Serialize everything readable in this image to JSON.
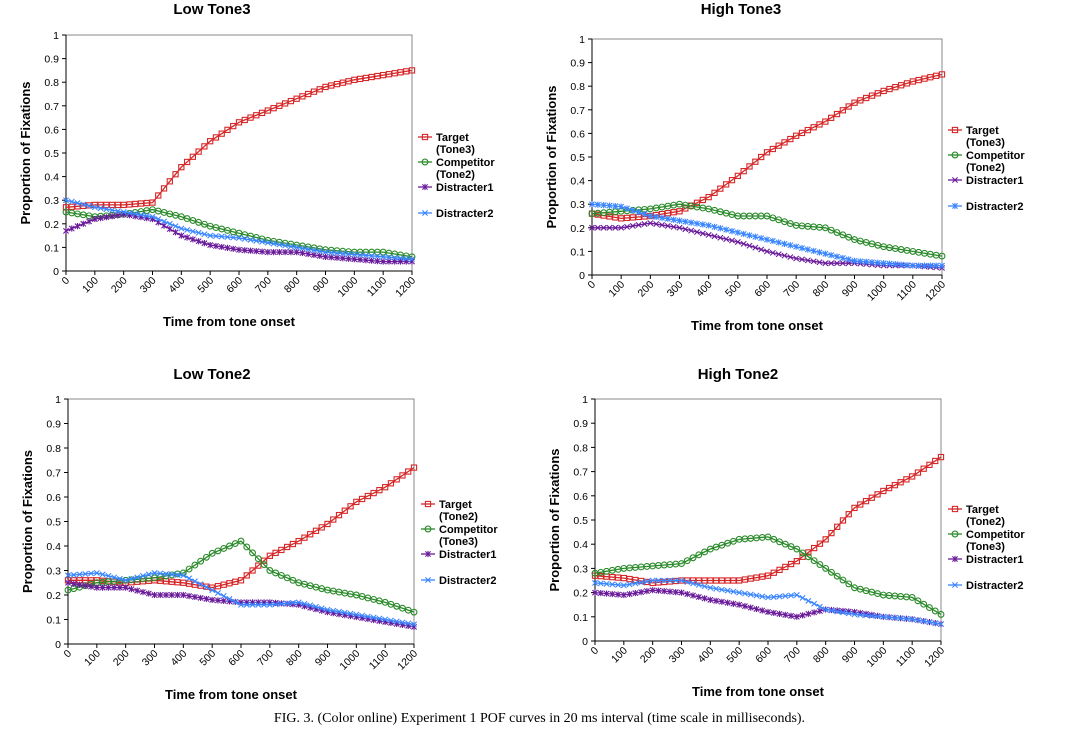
{
  "caption": "FIG. 3.  (Color online) Experiment 1 POF curves in 20 ms interval (time scale in milliseconds).",
  "series_colors": [
    "#d62728",
    "#2a8a2a",
    "#6a1b9a",
    "#3a86ff"
  ],
  "chart_data": [
    {
      "type": "line",
      "title": "Low Tone3",
      "xlabel": "Time from tone onset",
      "ylabel": "Proportion of Fixations",
      "xlim": [
        0,
        1200
      ],
      "ylim": [
        0,
        1
      ],
      "xticks": [
        "0",
        "100",
        "200",
        "300",
        "400",
        "500",
        "600",
        "700",
        "800",
        "900",
        "1000",
        "1100",
        "1200"
      ],
      "yticks": [
        "0",
        "0.1",
        "0.2",
        "0.3",
        "0.4",
        "0.5",
        "0.6",
        "0.7",
        "0.8",
        "0.9",
        "1"
      ],
      "legend_position": "right",
      "legend": [
        {
          "lines": [
            "Target",
            "(Tone3)"
          ],
          "marker": "square"
        },
        {
          "lines": [
            "Competitor",
            "(Tone2)"
          ],
          "marker": "circle"
        },
        {
          "lines": [
            "Distracter1"
          ],
          "marker": "star"
        },
        {
          "lines": [
            "Distracter2"
          ],
          "marker": "x"
        }
      ],
      "x": [
        0,
        100,
        200,
        300,
        400,
        500,
        600,
        700,
        800,
        900,
        1000,
        1100,
        1200
      ],
      "series": [
        {
          "name": "Target (Tone3)",
          "values": [
            0.27,
            0.28,
            0.28,
            0.29,
            0.44,
            0.55,
            0.63,
            0.68,
            0.73,
            0.78,
            0.81,
            0.83,
            0.85
          ]
        },
        {
          "name": "Competitor (Tone2)",
          "values": [
            0.25,
            0.23,
            0.24,
            0.26,
            0.23,
            0.19,
            0.16,
            0.13,
            0.11,
            0.09,
            0.08,
            0.08,
            0.06
          ]
        },
        {
          "name": "Distracter1",
          "values": [
            0.17,
            0.22,
            0.24,
            0.22,
            0.15,
            0.11,
            0.09,
            0.08,
            0.08,
            0.06,
            0.05,
            0.04,
            0.04
          ]
        },
        {
          "name": "Distracter2",
          "values": [
            0.3,
            0.27,
            0.25,
            0.23,
            0.18,
            0.15,
            0.14,
            0.12,
            0.1,
            0.08,
            0.07,
            0.06,
            0.05
          ]
        }
      ]
    },
    {
      "type": "line",
      "title": "High Tone3",
      "xlabel": "Time from tone onset",
      "ylabel": "Proportion of Fixations",
      "xlim": [
        0,
        1200
      ],
      "ylim": [
        0,
        1
      ],
      "xticks": [
        "0",
        "100",
        "200",
        "300",
        "400",
        "500",
        "600",
        "700",
        "800",
        "900",
        "1000",
        "1100",
        "1200"
      ],
      "yticks": [
        "0",
        "0.1",
        "0.2",
        "0.3",
        "0.4",
        "0.5",
        "0.6",
        "0.7",
        "0.8",
        "0.9",
        "1"
      ],
      "legend_position": "right",
      "legend": [
        {
          "lines": [
            "Target",
            "(Tone3)"
          ],
          "marker": "square"
        },
        {
          "lines": [
            "Competitor",
            "(Tone2)"
          ],
          "marker": "circle"
        },
        {
          "lines": [
            "Distracter1"
          ],
          "marker": "x"
        },
        {
          "lines": [
            "Distracter2"
          ],
          "marker": "star"
        }
      ],
      "x": [
        0,
        100,
        200,
        300,
        400,
        500,
        600,
        700,
        800,
        900,
        1000,
        1100,
        1200
      ],
      "series": [
        {
          "name": "Target (Tone3)",
          "values": [
            0.26,
            0.24,
            0.25,
            0.27,
            0.33,
            0.42,
            0.52,
            0.59,
            0.65,
            0.73,
            0.78,
            0.82,
            0.85
          ]
        },
        {
          "name": "Competitor (Tone2)",
          "values": [
            0.26,
            0.27,
            0.28,
            0.3,
            0.28,
            0.25,
            0.25,
            0.21,
            0.2,
            0.15,
            0.12,
            0.1,
            0.08
          ]
        },
        {
          "name": "Distracter1",
          "values": [
            0.2,
            0.2,
            0.22,
            0.2,
            0.17,
            0.14,
            0.1,
            0.07,
            0.05,
            0.05,
            0.04,
            0.04,
            0.03
          ]
        },
        {
          "name": "Distracter2",
          "values": [
            0.3,
            0.29,
            0.25,
            0.23,
            0.21,
            0.18,
            0.15,
            0.12,
            0.09,
            0.06,
            0.05,
            0.04,
            0.04
          ]
        }
      ]
    },
    {
      "type": "line",
      "title": "Low Tone2",
      "xlabel": "Time from tone onset",
      "ylabel": "Proportion of Fixations",
      "xlim": [
        0,
        1200
      ],
      "ylim": [
        0,
        1
      ],
      "xticks": [
        "0",
        "100",
        "200",
        "300",
        "400",
        "500",
        "600",
        "700",
        "800",
        "900",
        "1000",
        "1100",
        "1200"
      ],
      "yticks": [
        "0",
        "0.1",
        "0.2",
        "0.3",
        "0.4",
        "0.5",
        "0.6",
        "0.7",
        "0.8",
        "0.9",
        "1"
      ],
      "legend_position": "right",
      "legend": [
        {
          "lines": [
            "Target",
            "(Tone2)"
          ],
          "marker": "square"
        },
        {
          "lines": [
            "Competitor",
            "(Tone3)"
          ],
          "marker": "circle"
        },
        {
          "lines": [
            "Distracter1"
          ],
          "marker": "star"
        },
        {
          "lines": [
            "Distracter2"
          ],
          "marker": "x"
        }
      ],
      "x": [
        0,
        100,
        200,
        300,
        400,
        500,
        600,
        700,
        800,
        900,
        1000,
        1100,
        1200
      ],
      "series": [
        {
          "name": "Target (Tone2)",
          "values": [
            0.26,
            0.26,
            0.25,
            0.26,
            0.25,
            0.23,
            0.26,
            0.36,
            0.42,
            0.49,
            0.58,
            0.64,
            0.72
          ]
        },
        {
          "name": "Competitor (Tone3)",
          "values": [
            0.22,
            0.25,
            0.26,
            0.27,
            0.29,
            0.37,
            0.42,
            0.3,
            0.25,
            0.22,
            0.2,
            0.17,
            0.13
          ]
        },
        {
          "name": "Distracter1",
          "values": [
            0.25,
            0.23,
            0.23,
            0.2,
            0.2,
            0.18,
            0.17,
            0.17,
            0.16,
            0.13,
            0.11,
            0.09,
            0.07
          ]
        },
        {
          "name": "Distracter2",
          "values": [
            0.28,
            0.29,
            0.26,
            0.29,
            0.28,
            0.22,
            0.16,
            0.16,
            0.17,
            0.14,
            0.12,
            0.1,
            0.08
          ]
        }
      ]
    },
    {
      "type": "line",
      "title": "High Tone2",
      "xlabel": "Time from tone onset",
      "ylabel": "Proportion of Fixations",
      "xlim": [
        0,
        1200
      ],
      "ylim": [
        0,
        1
      ],
      "xticks": [
        "0",
        "100",
        "200",
        "300",
        "400",
        "500",
        "600",
        "700",
        "800",
        "900",
        "1000",
        "1100",
        "1200"
      ],
      "yticks": [
        "0",
        "0.1",
        "0.2",
        "0.3",
        "0.4",
        "0.5",
        "0.6",
        "0.7",
        "0.8",
        "0.9",
        "1"
      ],
      "legend_position": "right",
      "legend": [
        {
          "lines": [
            "Target",
            "(Tone2)"
          ],
          "marker": "square"
        },
        {
          "lines": [
            "Competitor",
            "(Tone3)"
          ],
          "marker": "circle"
        },
        {
          "lines": [
            "Distracter1"
          ],
          "marker": "star"
        },
        {
          "lines": [
            "Distracter2"
          ],
          "marker": "x"
        }
      ],
      "x": [
        0,
        100,
        200,
        300,
        400,
        500,
        600,
        700,
        800,
        900,
        1000,
        1100,
        1200
      ],
      "series": [
        {
          "name": "Target (Tone2)",
          "values": [
            0.27,
            0.26,
            0.24,
            0.25,
            0.25,
            0.25,
            0.27,
            0.33,
            0.42,
            0.55,
            0.62,
            0.68,
            0.76
          ]
        },
        {
          "name": "Competitor (Tone3)",
          "values": [
            0.28,
            0.3,
            0.31,
            0.32,
            0.38,
            0.42,
            0.43,
            0.38,
            0.3,
            0.22,
            0.19,
            0.18,
            0.11
          ]
        },
        {
          "name": "Distracter1",
          "values": [
            0.2,
            0.19,
            0.21,
            0.2,
            0.17,
            0.15,
            0.12,
            0.1,
            0.13,
            0.12,
            0.1,
            0.09,
            0.07
          ]
        },
        {
          "name": "Distracter2",
          "values": [
            0.24,
            0.23,
            0.25,
            0.25,
            0.22,
            0.2,
            0.18,
            0.19,
            0.13,
            0.11,
            0.1,
            0.09,
            0.07
          ]
        }
      ]
    }
  ]
}
